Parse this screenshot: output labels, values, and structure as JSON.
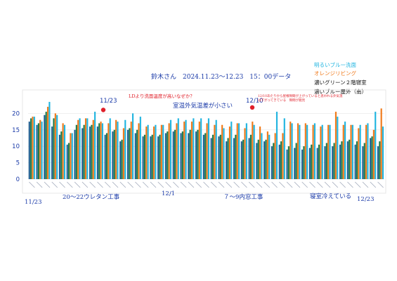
{
  "header": {
    "title": "鈴木さん　2024.11.23〜12.23　15：00データ"
  },
  "legend": [
    {
      "label": "明るいブルー洗面",
      "color": "#22b5e0"
    },
    {
      "label": "オレンジリビング",
      "color": "#f07a1a"
    },
    {
      "label": "濃いグリーン２階寝室",
      "color": "#1e7a4a"
    },
    {
      "label": "濃いブルー屋外（南）",
      "color": "#1f5f8f"
    }
  ],
  "annotations": {
    "ld_note": "LDより洗面温度が高いなぜか？",
    "small_diff": "室温外気温差が小さい",
    "dec10_note": "12/10あたりから屋根隙間が上がっていると思われる外気温は下がってきている　隙間が発見",
    "date_1123": "11/23",
    "date_1210": "12/10"
  },
  "bottom_labels": {
    "start": "11/23",
    "dec1": "12/1",
    "end": "12/23",
    "urethane": "20〜22ウレタン工事",
    "window": "７〜9内窓工事",
    "cold": "寝室冷えている"
  },
  "chart_data": {
    "type": "bar",
    "ylim": [
      0,
      25
    ],
    "yticks": [
      0,
      5,
      10,
      15,
      20
    ],
    "grid": true,
    "legend_position": "right",
    "colors": {
      "outdoor": "#1f5f8f",
      "bedroom": "#1e7a4a",
      "living": "#f07a1a",
      "washroom": "#22b5e0"
    },
    "series": [
      {
        "name": "濃いブルー屋外（南）",
        "key": "outdoor",
        "values": [
          17.5,
          16.5,
          19.5,
          16,
          13.5,
          10.5,
          15,
          15.5,
          16,
          16,
          13.5,
          14.5,
          11.5,
          15,
          14,
          13,
          13,
          13,
          14,
          14.5,
          14,
          14,
          14.5,
          13.5,
          12.5,
          13,
          11.5,
          12.5,
          11.5,
          12.5,
          11,
          11.5,
          10,
          10.5,
          9,
          9.5,
          9,
          9.5,
          9.5,
          10,
          10,
          10.5,
          11.5,
          10.5,
          10,
          12.5,
          10
        ]
      },
      {
        "name": "濃いグリーン２階寝室",
        "key": "bedroom",
        "values": [
          18.5,
          17,
          20.5,
          18.5,
          14.5,
          11,
          16.5,
          16.5,
          16.5,
          17,
          14,
          15,
          12,
          15.5,
          15,
          13.5,
          13.5,
          13.5,
          14.5,
          15,
          14.5,
          15,
          15,
          14,
          13.5,
          13.5,
          12.5,
          13.5,
          12,
          13.5,
          12,
          12,
          11,
          11.5,
          10,
          11,
          10,
          10.5,
          10.5,
          11,
          11,
          11.5,
          12,
          11.5,
          11,
          13,
          11.5
        ]
      },
      {
        "name": "オレンジリビング",
        "key": "living",
        "values": [
          19,
          18,
          22,
          20,
          17,
          14,
          18,
          18.5,
          18,
          17.5,
          17,
          18,
          15.5,
          17.5,
          17,
          16,
          16,
          16.5,
          17,
          17,
          17.5,
          17.5,
          17.5,
          17,
          16.5,
          16.5,
          16,
          17,
          15.5,
          17.5,
          16,
          14.5,
          14,
          14,
          17.5,
          17,
          17,
          16.5,
          16,
          16.5,
          20.5,
          16.5,
          16.5,
          15.5,
          16.5,
          15,
          21.5
        ]
      },
      {
        "name": "明るいブルー洗面",
        "key": "washroom",
        "values": [
          19,
          17.5,
          23.5,
          19.5,
          16.5,
          14,
          18.5,
          18.5,
          20.5,
          17,
          18.5,
          17.5,
          18,
          20,
          19,
          16.5,
          16.5,
          16.5,
          18,
          18.5,
          18,
          18.5,
          18.5,
          18.5,
          18,
          15.5,
          17.5,
          17,
          17,
          16.5,
          14,
          13.5,
          20.5,
          18.5,
          17,
          16.5,
          16.5,
          17,
          16.5,
          16.5,
          19,
          17.5,
          16.5,
          16.5,
          17,
          20.5,
          16
        ]
      }
    ]
  }
}
